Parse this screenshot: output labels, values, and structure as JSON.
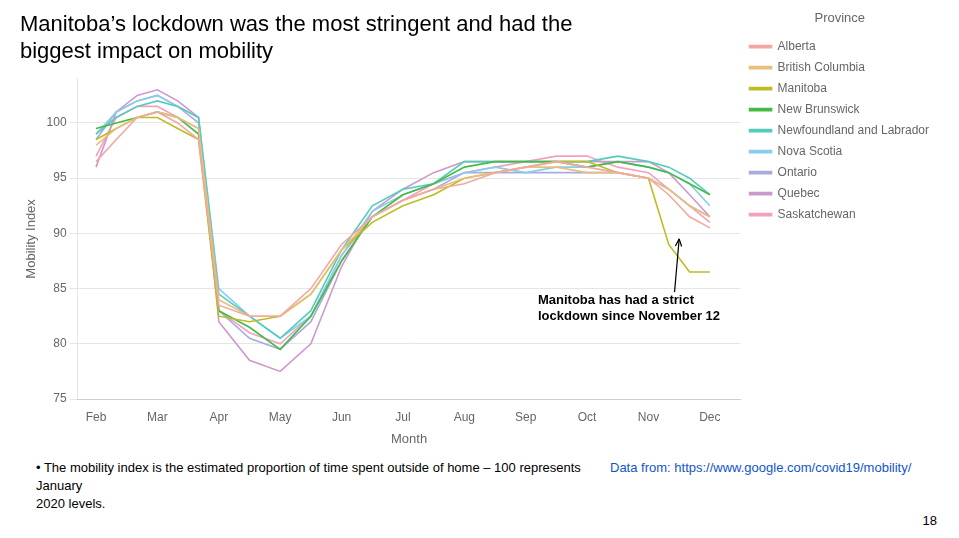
{
  "chart_data": {
    "type": "line",
    "title": [
      "Manitoba’s lockdown was the most stringent and had the",
      "biggest impact on mobility"
    ],
    "xlabel": "Month",
    "ylabel": "Mobility Index",
    "legend_title": "Province",
    "legend": "right",
    "grid": true,
    "xlim": [
      -0.3,
      10.5
    ],
    "xticks": [
      {
        "value": 0,
        "label": "Feb"
      },
      {
        "value": 1,
        "label": "Mar"
      },
      {
        "value": 2,
        "label": "Apr"
      },
      {
        "value": 3,
        "label": "May"
      },
      {
        "value": 4,
        "label": "Jun"
      },
      {
        "value": 5,
        "label": "Jul"
      },
      {
        "value": 6,
        "label": "Aug"
      },
      {
        "value": 7,
        "label": "Sep"
      },
      {
        "value": 8,
        "label": "Oct"
      },
      {
        "value": 9,
        "label": "Nov"
      },
      {
        "value": 10,
        "label": "Dec"
      }
    ],
    "ylim": [
      75,
      104
    ],
    "yticks": [
      75,
      80,
      85,
      90,
      95,
      100
    ],
    "x": [
      0,
      0.33,
      0.67,
      1.0,
      1.33,
      1.67,
      2.0,
      2.5,
      3.0,
      3.5,
      4.0,
      4.5,
      5.0,
      5.5,
      6.0,
      6.5,
      7.0,
      7.5,
      8.0,
      8.5,
      9.0,
      9.33,
      9.67,
      10.0
    ],
    "series": [
      {
        "name": "Alberta",
        "color": "#F4A7A3",
        "values": [
          96.5,
          98.5,
          100.5,
          101.0,
          100.0,
          98.5,
          83.5,
          82.5,
          82.5,
          85.0,
          89.0,
          91.5,
          93.0,
          94.0,
          94.5,
          95.5,
          96.0,
          96.5,
          96.0,
          95.5,
          95.0,
          93.5,
          91.5,
          90.5
        ]
      },
      {
        "name": "British Columbia",
        "color": "#E8C07A",
        "values": [
          98.0,
          99.5,
          100.5,
          101.0,
          100.5,
          99.5,
          84.0,
          82.5,
          82.5,
          84.5,
          88.5,
          91.5,
          93.0,
          94.0,
          95.0,
          95.5,
          96.0,
          96.0,
          95.5,
          95.5,
          95.0,
          94.0,
          92.5,
          91.5
        ]
      },
      {
        "name": "Manitoba",
        "color": "#BCBD22",
        "values": [
          98.5,
          99.5,
          100.5,
          100.5,
          99.5,
          98.5,
          82.5,
          82.0,
          82.5,
          84.5,
          88.5,
          91.0,
          92.5,
          93.5,
          95.0,
          95.5,
          96.0,
          96.5,
          96.5,
          95.5,
          95.0,
          89.0,
          86.5,
          86.5
        ]
      },
      {
        "name": "New Brunswick",
        "color": "#44BB44",
        "values": [
          99.5,
          100.0,
          100.5,
          101.0,
          100.5,
          99.0,
          83.0,
          81.5,
          79.5,
          82.5,
          87.5,
          91.5,
          93.5,
          94.5,
          96.0,
          96.5,
          96.5,
          96.5,
          96.0,
          96.5,
          96.0,
          95.5,
          94.5,
          93.5
        ]
      },
      {
        "name": "Newfoundland and Labrador",
        "color": "#55CCBB",
        "values": [
          99.0,
          100.5,
          101.5,
          102.0,
          101.5,
          100.5,
          84.5,
          82.5,
          80.5,
          83.0,
          88.5,
          92.5,
          94.0,
          94.5,
          96.5,
          96.5,
          96.5,
          96.5,
          96.5,
          97.0,
          96.5,
          96.0,
          95.0,
          93.5
        ]
      },
      {
        "name": "Nova Scotia",
        "color": "#88CCEE",
        "values": [
          99.0,
          101.0,
          102.0,
          102.5,
          101.5,
          100.5,
          85.0,
          82.5,
          80.5,
          82.5,
          88.0,
          92.0,
          93.5,
          94.5,
          95.5,
          96.0,
          95.5,
          96.0,
          96.0,
          96.5,
          96.0,
          95.5,
          94.5,
          92.5
        ]
      },
      {
        "name": "Ontario",
        "color": "#AAAADD",
        "values": [
          98.5,
          101.0,
          102.0,
          102.5,
          101.5,
          100.0,
          83.0,
          80.5,
          79.5,
          82.0,
          87.5,
          91.5,
          93.0,
          94.0,
          95.5,
          95.5,
          95.5,
          95.5,
          95.5,
          95.5,
          95.0,
          94.0,
          92.5,
          91.5
        ]
      },
      {
        "name": "Quebec",
        "color": "#CC99CC",
        "values": [
          96.0,
          101.0,
          102.5,
          103.0,
          102.0,
          100.5,
          82.0,
          78.5,
          77.5,
          80.0,
          87.0,
          92.0,
          94.0,
          95.5,
          96.5,
          96.5,
          96.5,
          96.5,
          96.5,
          96.5,
          96.5,
          95.5,
          93.5,
          91.5
        ]
      },
      {
        "name": "Saskatchewan",
        "color": "#F4A0C0",
        "values": [
          97.0,
          100.5,
          101.5,
          101.5,
          100.5,
          99.5,
          83.0,
          81.0,
          80.0,
          82.5,
          88.0,
          91.5,
          93.0,
          94.5,
          95.5,
          96.0,
          96.5,
          97.0,
          97.0,
          96.0,
          95.5,
          94.0,
          92.5,
          91.0
        ]
      }
    ],
    "annotations": [
      {
        "text": [
          "Manitoba has had a strict",
          "lockdown since November 12"
        ],
        "x": 9.5,
        "y": 89.5,
        "text_x": 7.2,
        "text_y": 84.5
      }
    ],
    "footnote": [
      "• The mobility index is the estimated proportion of time spent outside of home – 100 represents January",
      "2020 levels."
    ],
    "source": "Data from: https://www.google.com/covid19/mobility/",
    "page_number": "18"
  }
}
